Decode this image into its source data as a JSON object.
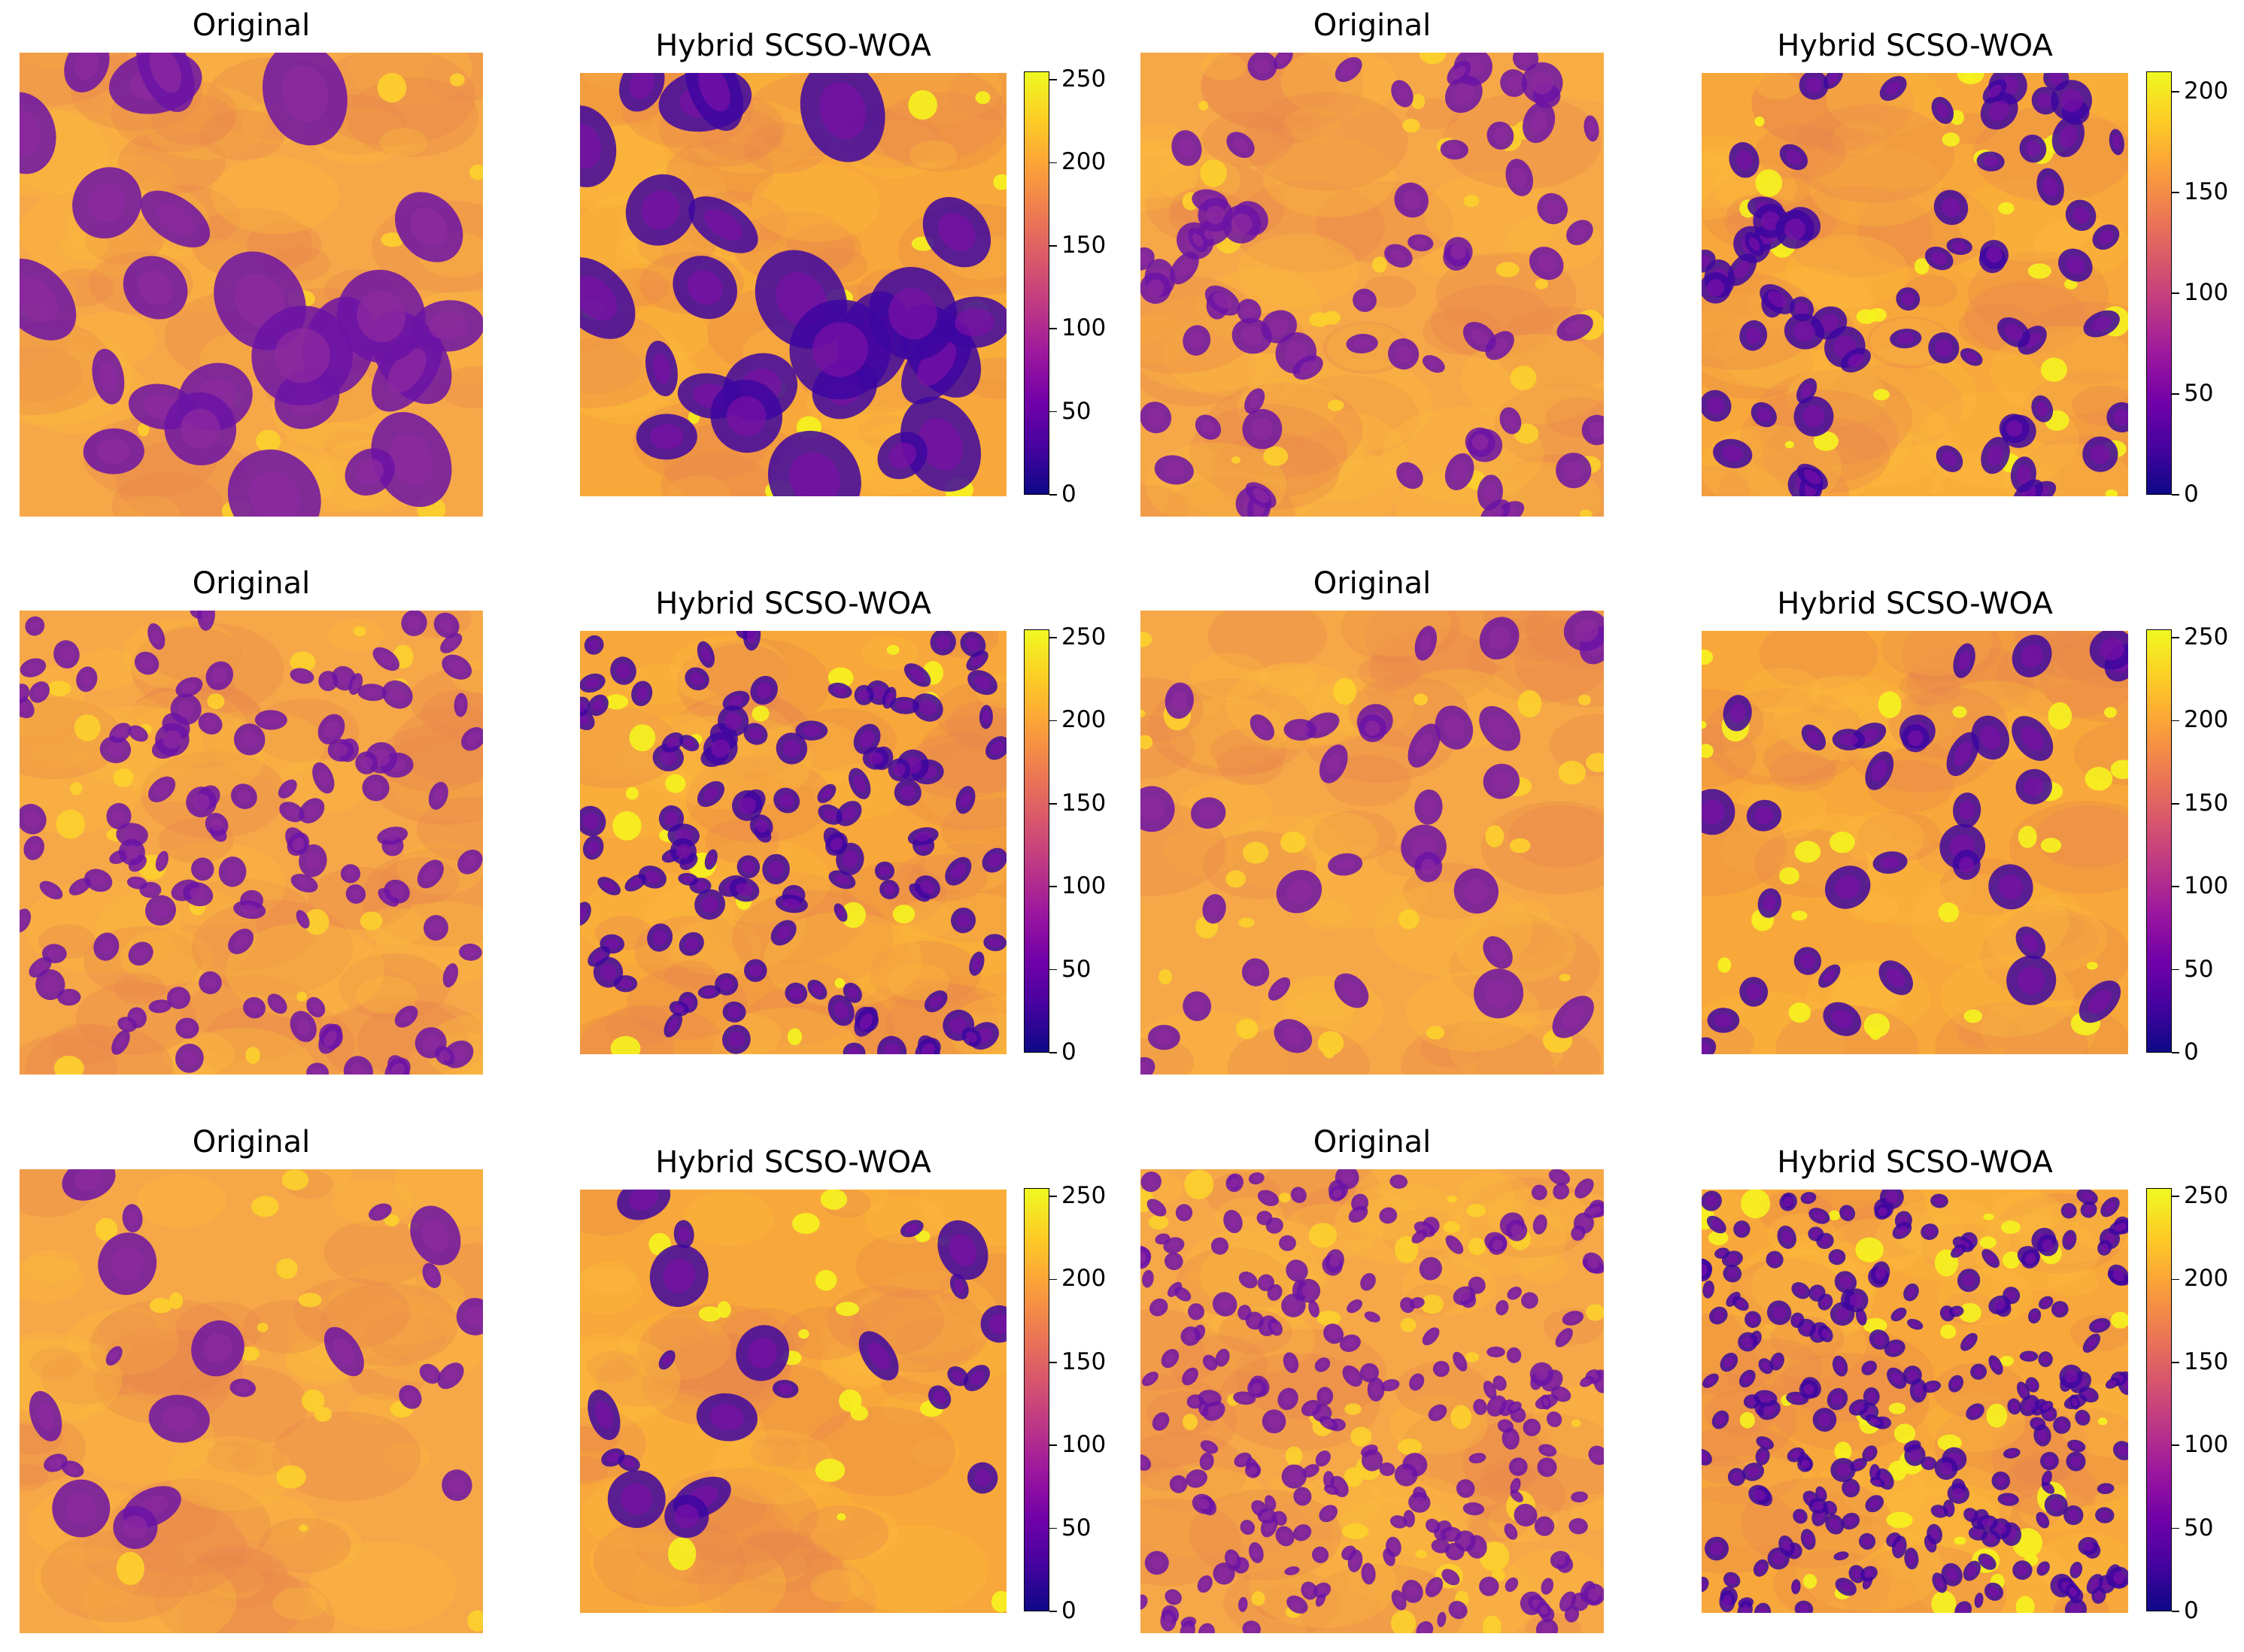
{
  "figure": {
    "colormap": "plasma",
    "colormap_stops": [
      "#0d0887",
      "#46039f",
      "#7201a8",
      "#9c179e",
      "#bd3786",
      "#d8576b",
      "#ed7953",
      "#fb9f3a",
      "#fdca26",
      "#f0f921"
    ],
    "rows": [
      {
        "pairs": [
          {
            "original": {
              "title": "Original",
              "content": "large-nuclei"
            },
            "enhanced": {
              "title": "Hybrid SCSO-WOA",
              "content": "large-nuclei"
            },
            "colorbar": {
              "ticks": [
                "0",
                "50",
                "100",
                "150",
                "200",
                "250"
              ],
              "max": 255
            }
          },
          {
            "original": {
              "title": "Original",
              "content": "medium-nuclei"
            },
            "enhanced": {
              "title": "Hybrid SCSO-WOA",
              "content": "medium-nuclei"
            },
            "colorbar": {
              "ticks": [
                "0",
                "50",
                "100",
                "150",
                "200"
              ],
              "max": 210
            }
          }
        ]
      },
      {
        "pairs": [
          {
            "original": {
              "title": "Original",
              "content": "dense-nuclei"
            },
            "enhanced": {
              "title": "Hybrid SCSO-WOA",
              "content": "dense-nuclei"
            },
            "colorbar": {
              "ticks": [
                "0",
                "50",
                "100",
                "150",
                "200",
                "250"
              ],
              "max": 255
            }
          },
          {
            "original": {
              "title": "Original",
              "content": "vacuolated-tissue"
            },
            "enhanced": {
              "title": "Hybrid SCSO-WOA",
              "content": "vacuolated-tissue"
            },
            "colorbar": {
              "ticks": [
                "0",
                "50",
                "100",
                "150",
                "200",
                "250"
              ],
              "max": 255
            }
          }
        ]
      },
      {
        "pairs": [
          {
            "original": {
              "title": "Original",
              "content": "sparse-tissue"
            },
            "enhanced": {
              "title": "Hybrid SCSO-WOA",
              "content": "sparse-tissue"
            },
            "colorbar": {
              "ticks": [
                "0",
                "50",
                "100",
                "150",
                "200",
                "250"
              ],
              "max": 255
            }
          },
          {
            "original": {
              "title": "Original",
              "content": "crowded-small-nuclei"
            },
            "enhanced": {
              "title": "Hybrid SCSO-WOA",
              "content": "crowded-small-nuclei"
            },
            "colorbar": {
              "ticks": [
                "0",
                "50",
                "100",
                "150",
                "200",
                "250"
              ],
              "max": 255
            }
          }
        ]
      }
    ]
  }
}
